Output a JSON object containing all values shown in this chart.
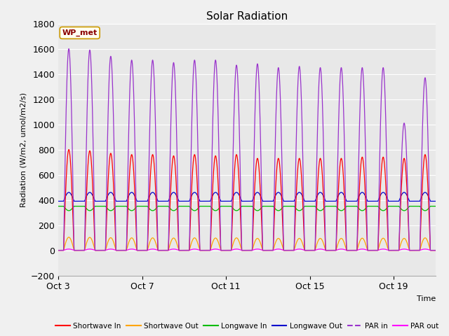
{
  "title": "Solar Radiation",
  "ylabel": "Radiation (W/m2, umol/m2/s)",
  "xlabel": "Time",
  "ylim": [
    -200,
    1800
  ],
  "yticks": [
    -200,
    0,
    200,
    400,
    600,
    800,
    1000,
    1200,
    1400,
    1600,
    1800
  ],
  "xtick_labels": [
    "Oct 3",
    "Oct 7",
    "Oct 11",
    "Oct 15",
    "Oct 19"
  ],
  "xtick_positions": [
    0,
    4,
    8,
    12,
    16
  ],
  "bg_color": "#f0f0f0",
  "plot_bg_color": "#e8e8e8",
  "grid_color": "#ffffff",
  "annotation_text": "WP_met",
  "annotation_color": "#8B0000",
  "annotation_bg": "#fffff0",
  "colors": {
    "shortwave_in": "#ff0000",
    "shortwave_out": "#ffa500",
    "longwave_in": "#00bb00",
    "longwave_out": "#0000cc",
    "par_in": "#9933cc",
    "par_out": "#ff00ff"
  },
  "legend_labels": [
    "Shortwave In",
    "Shortwave Out",
    "Longwave In",
    "Longwave Out",
    "PAR in",
    "PAR out"
  ],
  "n_days": 18,
  "pts_per_day": 288,
  "sw_in_peaks": [
    800,
    790,
    770,
    760,
    760,
    750,
    760,
    750,
    760,
    730,
    730,
    730,
    730,
    730,
    740,
    740,
    730,
    760
  ],
  "par_in_peaks": [
    1600,
    1590,
    1540,
    1510,
    1510,
    1490,
    1510,
    1510,
    1470,
    1480,
    1450,
    1460,
    1450,
    1450,
    1450,
    1450,
    1010,
    1370
  ]
}
